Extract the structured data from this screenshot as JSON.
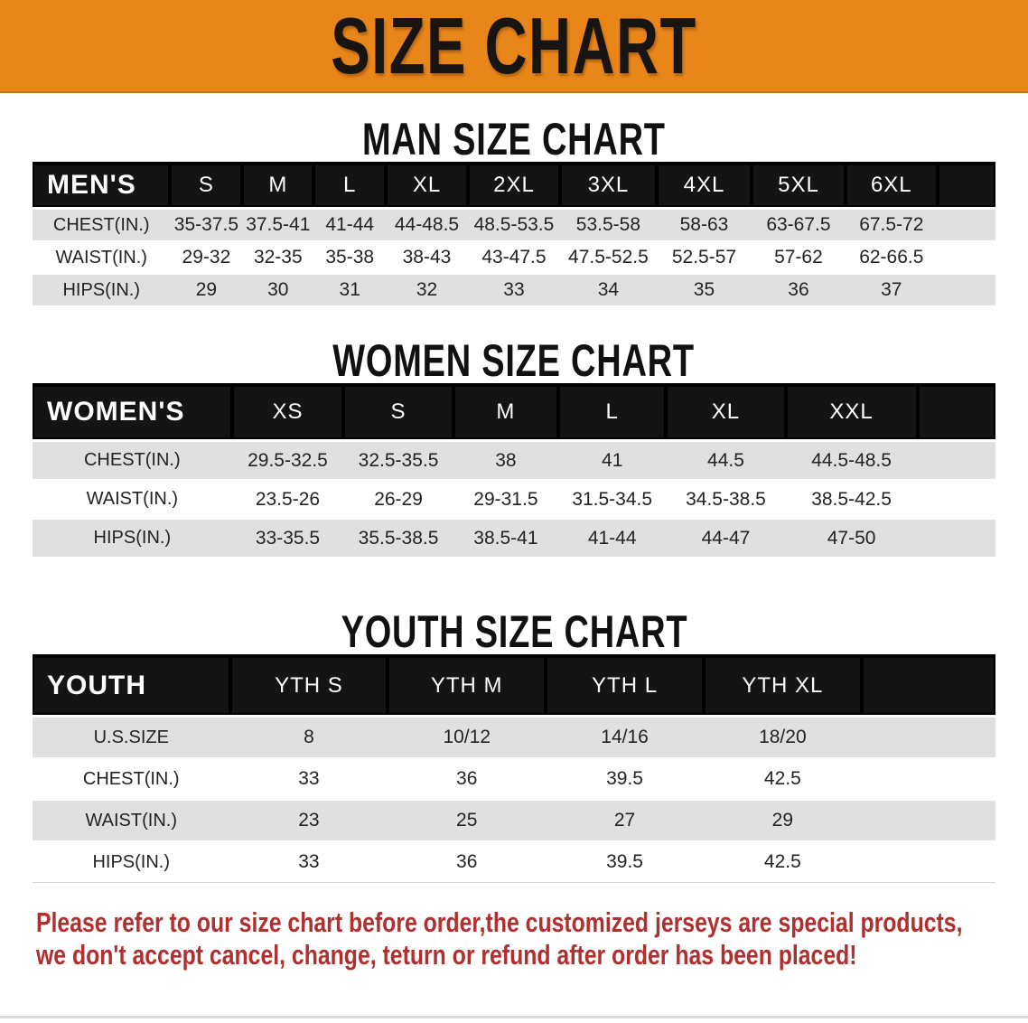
{
  "banner": {
    "title": "SIZE CHART"
  },
  "sections": [
    {
      "heading": "MAN SIZE CHART",
      "table": {
        "label": "MEN'S",
        "columns": [
          "S",
          "M",
          "L",
          "XL",
          "2XL",
          "3XL",
          "4XL",
          "5XL",
          "6XL"
        ],
        "rows": [
          {
            "label": "CHEST(IN.)",
            "values": [
              "35-37.5",
              "37.5-41",
              "41-44",
              "44-48.5",
              "48.5-53.5",
              "53.5-58",
              "58-63",
              "63-67.5",
              "67.5-72"
            ]
          },
          {
            "label": "WAIST(IN.)",
            "values": [
              "29-32",
              "32-35",
              "35-38",
              "38-43",
              "43-47.5",
              "47.5-52.5",
              "52.5-57",
              "57-62",
              "62-66.5"
            ]
          },
          {
            "label": "HIPS(IN.)",
            "values": [
              "29",
              "30",
              "31",
              "32",
              "33",
              "34",
              "35",
              "36",
              "37"
            ]
          }
        ]
      }
    },
    {
      "heading": "WOMEN SIZE CHART",
      "table": {
        "label": "WOMEN'S",
        "columns": [
          "XS",
          "S",
          "M",
          "L",
          "XL",
          "XXL"
        ],
        "rows": [
          {
            "label": "CHEST(IN.)",
            "values": [
              "29.5-32.5",
              "32.5-35.5",
              "38",
              "41",
              "44.5",
              "44.5-48.5"
            ]
          },
          {
            "label": "WAIST(IN.)",
            "values": [
              "23.5-26",
              "26-29",
              "29-31.5",
              "31.5-34.5",
              "34.5-38.5",
              "38.5-42.5"
            ]
          },
          {
            "label": "HIPS(IN.)",
            "values": [
              "33-35.5",
              "35.5-38.5",
              "38.5-41",
              "41-44",
              "44-47",
              "47-50"
            ]
          }
        ]
      }
    },
    {
      "heading": "YOUTH SIZE CHART",
      "table": {
        "label": "YOUTH",
        "columns": [
          "YTH S",
          "YTH M",
          "YTH L",
          "YTH XL"
        ],
        "rows": [
          {
            "label": "U.S.SIZE",
            "values": [
              "8",
              "10/12",
              "14/16",
              "18/20"
            ]
          },
          {
            "label": "CHEST(IN.)",
            "values": [
              "33",
              "36",
              "39.5",
              "42.5"
            ]
          },
          {
            "label": "WAIST(IN.)",
            "values": [
              "23",
              "25",
              "27",
              "29"
            ]
          },
          {
            "label": "HIPS(IN.)",
            "values": [
              "33",
              "36",
              "39.5",
              "42.5"
            ]
          }
        ]
      }
    }
  ],
  "footer": {
    "line1": "Please refer to our size chart before order,the customized jerseys are special products,",
    "line2": "we don't accept cancel, change, teturn or refund after order has been placed!"
  },
  "colors": {
    "banner_orange": "#E8861A",
    "header_bar_black": "#141414",
    "row_stripe_grey": "#E0E0E0",
    "footer_red": "#B03030"
  }
}
